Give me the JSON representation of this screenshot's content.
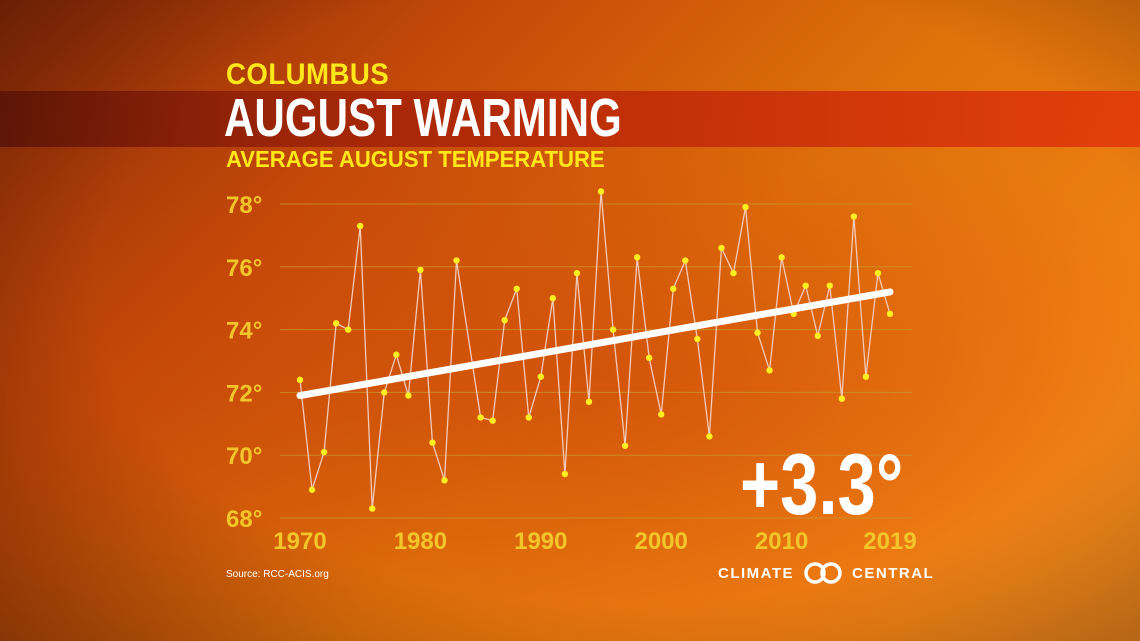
{
  "header": {
    "city": "COLUMBUS",
    "title": "AUGUST WARMING",
    "subtitle": "AVERAGE AUGUST TEMPERATURE"
  },
  "annotation": {
    "change": "+3.3°"
  },
  "footer": {
    "source": "Source: RCC-ACIS.org",
    "logo_left": "CLIMATE",
    "logo_right": "CENTRAL",
    "logo_icon": "climate-central-rings-icon"
  },
  "colors": {
    "marker": "#ffee22",
    "line": "#f3c9b8",
    "trend": "#ffffff",
    "tick": "#f2c62a",
    "grid": "#c9962c"
  },
  "chart_data": {
    "type": "line",
    "xlim": [
      1970,
      2019
    ],
    "ylim": [
      68,
      78
    ],
    "x_ticks": [
      1970,
      1980,
      1990,
      2000,
      2010,
      2019
    ],
    "y_ticks": [
      68,
      70,
      72,
      74,
      76,
      78
    ],
    "y_tick_suffix": "°",
    "grid": "horizontal",
    "series": [
      {
        "x": [
          1970,
          1971,
          1972,
          1973,
          1974,
          1975,
          1976,
          1977,
          1978,
          1979,
          1980,
          1981,
          1982,
          1983,
          1984,
          1985,
          1986,
          1987,
          1988,
          1989,
          1990,
          1991,
          1992,
          1993,
          1994,
          1995,
          1996,
          1997,
          1998,
          1999,
          2000,
          2001,
          2002,
          2003,
          2004,
          2005,
          2006,
          2007,
          2008,
          2009,
          2010,
          2011,
          2012,
          2013,
          2014,
          2015,
          2016,
          2017,
          2018,
          2019
        ],
        "values": [
          72.4,
          68.9,
          70.1,
          74.2,
          74.0,
          77.3,
          68.3,
          72.0,
          73.2,
          71.9,
          75.9,
          70.4,
          69.2,
          76.2,
          null,
          71.2,
          71.1,
          74.3,
          75.3,
          71.2,
          72.5,
          75.0,
          69.4,
          75.8,
          71.7,
          78.4,
          74.0,
          70.3,
          76.3,
          73.1,
          71.3,
          75.3,
          76.2,
          73.7,
          70.6,
          76.6,
          75.8,
          77.9,
          73.9,
          72.7,
          76.3,
          74.5,
          75.4,
          73.8,
          75.4,
          71.8,
          77.6,
          72.5,
          75.8,
          74.5
        ]
      }
    ],
    "trend": {
      "x": [
        1970,
        2019
      ],
      "values": [
        71.9,
        75.2
      ]
    }
  }
}
